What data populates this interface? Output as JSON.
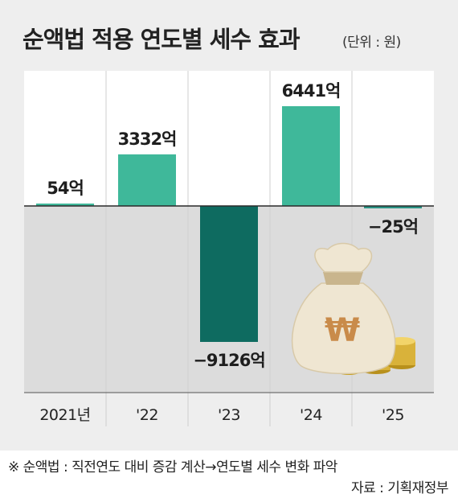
{
  "title": "순액법 적용 연도별 세수 효과",
  "unit": "(단위 : 원)",
  "note": "※ 순액법 : 직전연도 대비 증감 계산→연도별 세수 변화 파악",
  "source": "자료 : 기획재정부",
  "colors": {
    "positive": "#3fb89a",
    "negative_large": "#0e6b60",
    "negative_small": "#2a9384",
    "upper_bg": "#ffffff",
    "lower_bg": "#dcdcdc",
    "page_bg": "#eeeeee"
  },
  "decoration": "money-bag-with-won-sign-and-coins",
  "chart_data": {
    "type": "bar",
    "categories": [
      "2021년",
      "'22",
      "'23",
      "'24",
      "'25"
    ],
    "values": [
      54,
      3332,
      -9126,
      6441,
      -25
    ],
    "data_labels": [
      "54억",
      "3332억",
      "−9126억",
      "6441억",
      "−25억"
    ],
    "value_unit": "억원",
    "title": "순액법 적용 연도별 세수 효과",
    "xlabel": "",
    "ylabel": "",
    "ylim": [
      -9126,
      6441
    ],
    "grid": false,
    "legend": "none"
  }
}
